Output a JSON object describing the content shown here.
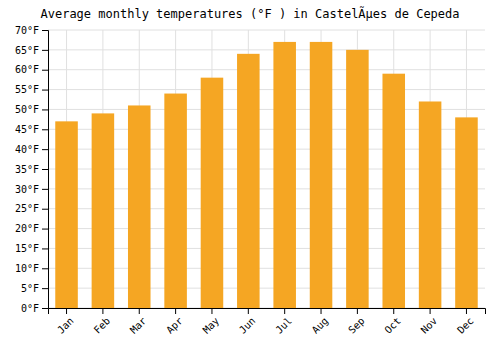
{
  "chart_data": {
    "type": "bar",
    "title": "Average monthly temperatures (°F ) in CastelÃµes de Cepeda",
    "categories": [
      "Jan",
      "Feb",
      "Mar",
      "Apr",
      "May",
      "Jun",
      "Jul",
      "Aug",
      "Sep",
      "Oct",
      "Nov",
      "Dec"
    ],
    "values": [
      47,
      49,
      51,
      54,
      58,
      64,
      67,
      67,
      65,
      59,
      52,
      48
    ],
    "color": "#F5A623",
    "ylim": [
      0,
      70
    ],
    "yticks": [
      {
        "value": 0,
        "label": "0°F"
      },
      {
        "value": 5,
        "label": "5°F"
      },
      {
        "value": 10,
        "label": "10°F"
      },
      {
        "value": 15,
        "label": "15°F"
      },
      {
        "value": 20,
        "label": "20°F"
      },
      {
        "value": 25,
        "label": "25°F"
      },
      {
        "value": 30,
        "label": "30°F"
      },
      {
        "value": 35,
        "label": "35°F"
      },
      {
        "value": 40,
        "label": "40°F"
      },
      {
        "value": 45,
        "label": "45°F"
      },
      {
        "value": 50,
        "label": "50°F"
      },
      {
        "value": 55,
        "label": "55°F"
      },
      {
        "value": 60,
        "label": "60°F"
      },
      {
        "value": 65,
        "label": "65°F"
      },
      {
        "value": 70,
        "label": "70°F"
      }
    ],
    "grid": true
  }
}
